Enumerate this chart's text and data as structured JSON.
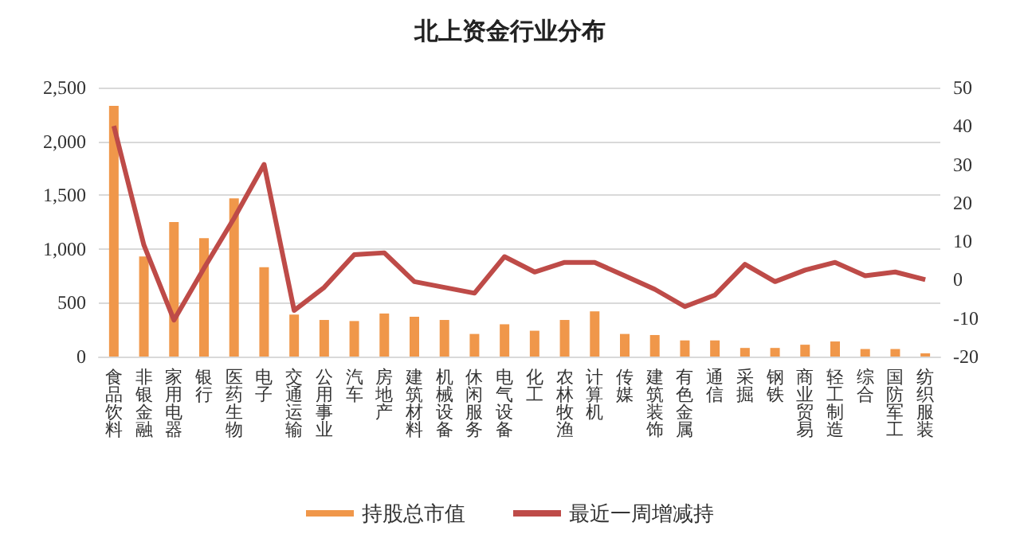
{
  "chart_data": {
    "type": "bar",
    "title": "北上资金行业分布",
    "categories": [
      "食品饮料",
      "非银金融",
      "家用电器",
      "银行",
      "医药生物",
      "电子",
      "交通运输",
      "公用事业",
      "汽车",
      "房地产",
      "建筑材料",
      "机械设备",
      "休闲服务",
      "电气设备",
      "化工",
      "农林牧渔",
      "计算机",
      "传媒",
      "建筑装饰",
      "有色金属",
      "通信",
      "采掘",
      "钢铁",
      "商业贸易",
      "轻工制造",
      "综合",
      "国防军工",
      "纺织服装"
    ],
    "series": [
      {
        "name": "持股总市值",
        "color": "#f0974a",
        "values": [
          2330,
          930,
          1250,
          1100,
          1470,
          830,
          390,
          340,
          330,
          400,
          370,
          340,
          210,
          300,
          240,
          340,
          420,
          210,
          200,
          150,
          150,
          80,
          80,
          110,
          140,
          70,
          70,
          30
        ]
      },
      {
        "name": "最近一周增减持",
        "type": "line",
        "axis": "y2",
        "color": "#be4b48",
        "values": [
          40,
          9,
          -10.5,
          3,
          16,
          30,
          -8,
          -2,
          6.5,
          7,
          -0.5,
          -2,
          -3.5,
          6,
          2,
          4.5,
          4.5,
          1,
          -2.5,
          -7,
          -4,
          4,
          -0.5,
          2.5,
          4.5,
          1,
          2,
          0
        ]
      }
    ],
    "ylim": [
      0,
      2500
    ],
    "yticks": [
      0,
      500,
      {
        "value": 1000,
        "label": "1,000"
      },
      {
        "value": 1500,
        "label": "1,500"
      },
      {
        "value": 2000,
        "label": "2,000"
      },
      {
        "value": 2500,
        "label": "2,500"
      }
    ],
    "y2lim": [
      -20,
      50
    ],
    "y2ticks": [
      -20,
      -10,
      0,
      10,
      20,
      30,
      40,
      50
    ],
    "grid": "y",
    "legend": "bottom",
    "marker": "none"
  }
}
